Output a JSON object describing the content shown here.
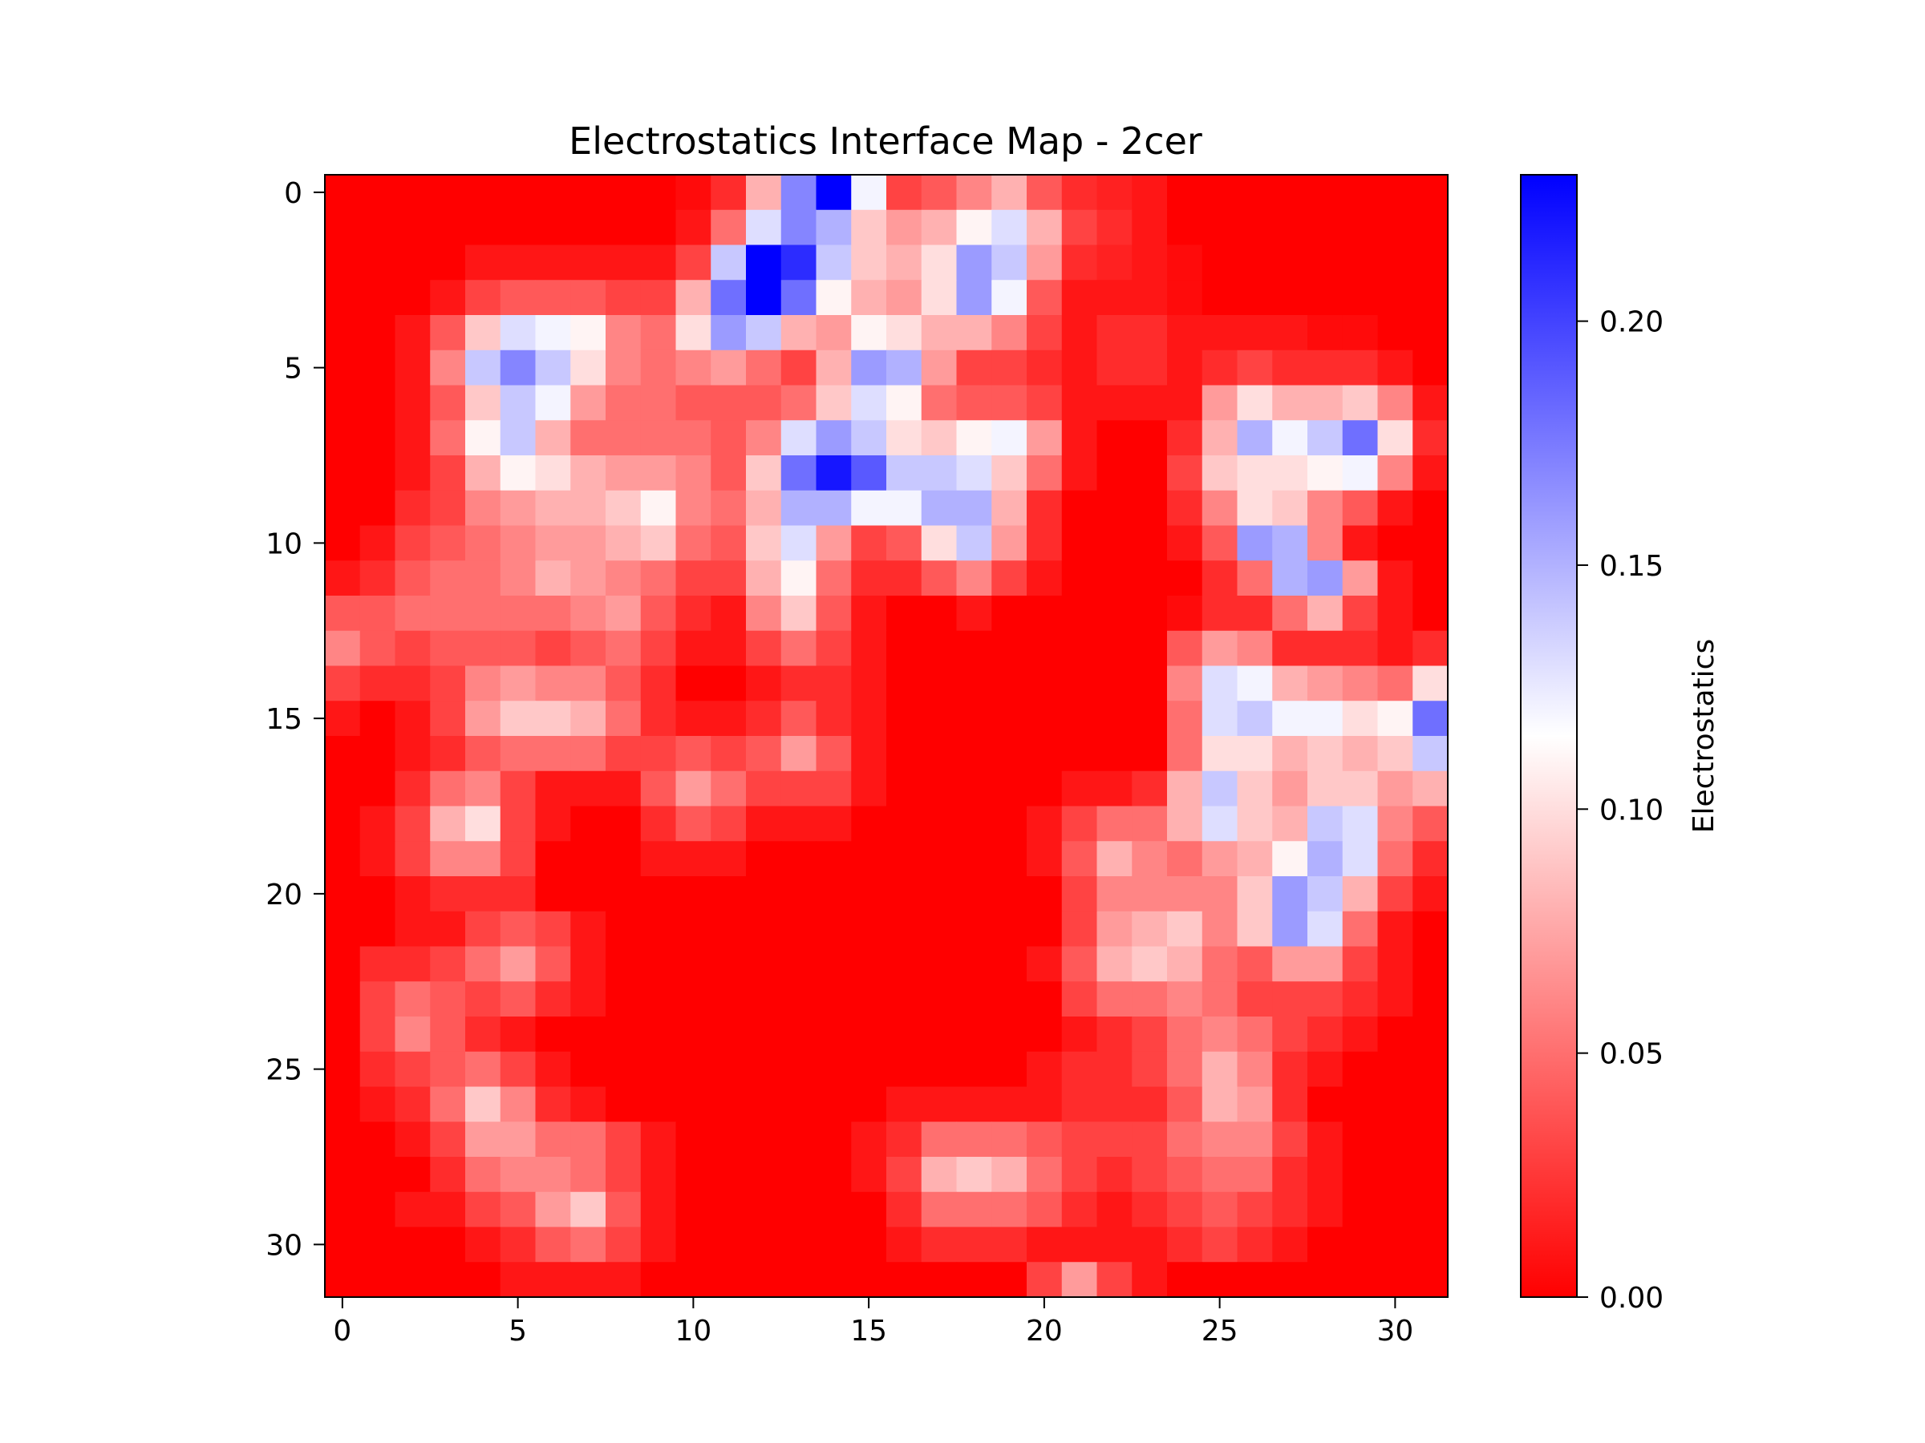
{
  "chart_data": {
    "type": "heatmap",
    "title": "Electrostatics Interface Map - 2cer",
    "xlabel": "",
    "ylabel": "",
    "colorbar_label": "Electrostatics",
    "colormap": "bwr_r",
    "colormap_stops": [
      "#ff0000",
      "#ffffff",
      "#0000ff"
    ],
    "vmin": 0.0,
    "vmax": 0.23,
    "x_ticks": [
      0,
      5,
      10,
      15,
      20,
      25,
      30
    ],
    "y_ticks": [
      0,
      5,
      10,
      15,
      20,
      25,
      30
    ],
    "colorbar_ticks": [
      0.0,
      0.05,
      0.1,
      0.15,
      0.2
    ],
    "colorbar_tick_labels": [
      "0.00",
      "0.05",
      "0.10",
      "0.15",
      "0.20"
    ],
    "rows": 32,
    "cols": 32,
    "values": [
      [
        0.0,
        0.0,
        0.0,
        0.0,
        0.0,
        0.0,
        0.0,
        0.0,
        0.0,
        0.0,
        0.005,
        0.02,
        0.08,
        0.17,
        0.23,
        0.12,
        0.03,
        0.04,
        0.06,
        0.08,
        0.04,
        0.02,
        0.015,
        0.01,
        0.0,
        0.0,
        0.0,
        0.0,
        0.0,
        0.0,
        0.0,
        0.0
      ],
      [
        0.0,
        0.0,
        0.0,
        0.0,
        0.0,
        0.0,
        0.0,
        0.0,
        0.0,
        0.0,
        0.01,
        0.05,
        0.13,
        0.17,
        0.15,
        0.09,
        0.07,
        0.08,
        0.11,
        0.13,
        0.08,
        0.03,
        0.02,
        0.01,
        0.0,
        0.0,
        0.0,
        0.0,
        0.0,
        0.0,
        0.0,
        0.0
      ],
      [
        0.0,
        0.0,
        0.0,
        0.0,
        0.01,
        0.01,
        0.01,
        0.01,
        0.01,
        0.01,
        0.03,
        0.14,
        0.23,
        0.21,
        0.14,
        0.09,
        0.08,
        0.1,
        0.16,
        0.14,
        0.07,
        0.02,
        0.015,
        0.01,
        0.005,
        0.0,
        0.0,
        0.0,
        0.0,
        0.0,
        0.0,
        0.0
      ],
      [
        0.0,
        0.0,
        0.0,
        0.01,
        0.03,
        0.04,
        0.04,
        0.04,
        0.03,
        0.03,
        0.08,
        0.18,
        0.23,
        0.18,
        0.11,
        0.08,
        0.07,
        0.1,
        0.16,
        0.12,
        0.04,
        0.01,
        0.01,
        0.01,
        0.005,
        0.0,
        0.0,
        0.0,
        0.0,
        0.0,
        0.0,
        0.0
      ],
      [
        0.0,
        0.0,
        0.01,
        0.04,
        0.09,
        0.13,
        0.12,
        0.11,
        0.06,
        0.05,
        0.1,
        0.16,
        0.14,
        0.08,
        0.07,
        0.11,
        0.1,
        0.08,
        0.08,
        0.06,
        0.03,
        0.01,
        0.02,
        0.02,
        0.01,
        0.01,
        0.01,
        0.01,
        0.005,
        0.005,
        0.0,
        0.0
      ],
      [
        0.0,
        0.0,
        0.01,
        0.06,
        0.14,
        0.17,
        0.14,
        0.1,
        0.06,
        0.05,
        0.06,
        0.07,
        0.05,
        0.03,
        0.08,
        0.16,
        0.15,
        0.07,
        0.03,
        0.03,
        0.02,
        0.01,
        0.02,
        0.02,
        0.01,
        0.02,
        0.03,
        0.02,
        0.02,
        0.02,
        0.01,
        0.0
      ],
      [
        0.0,
        0.0,
        0.01,
        0.04,
        0.09,
        0.14,
        0.12,
        0.07,
        0.05,
        0.05,
        0.04,
        0.04,
        0.04,
        0.05,
        0.09,
        0.13,
        0.11,
        0.05,
        0.04,
        0.04,
        0.03,
        0.01,
        0.01,
        0.01,
        0.01,
        0.07,
        0.1,
        0.08,
        0.08,
        0.09,
        0.06,
        0.01
      ],
      [
        0.0,
        0.0,
        0.01,
        0.05,
        0.11,
        0.14,
        0.08,
        0.05,
        0.05,
        0.05,
        0.05,
        0.04,
        0.06,
        0.13,
        0.16,
        0.14,
        0.1,
        0.09,
        0.11,
        0.12,
        0.07,
        0.01,
        0.0,
        0.0,
        0.02,
        0.08,
        0.15,
        0.12,
        0.14,
        0.18,
        0.1,
        0.02
      ],
      [
        0.0,
        0.0,
        0.01,
        0.03,
        0.08,
        0.11,
        0.1,
        0.08,
        0.07,
        0.07,
        0.06,
        0.04,
        0.09,
        0.18,
        0.22,
        0.19,
        0.14,
        0.14,
        0.13,
        0.09,
        0.05,
        0.01,
        0.0,
        0.0,
        0.03,
        0.09,
        0.1,
        0.1,
        0.11,
        0.12,
        0.06,
        0.01
      ],
      [
        0.0,
        0.0,
        0.02,
        0.03,
        0.06,
        0.07,
        0.08,
        0.08,
        0.09,
        0.11,
        0.06,
        0.05,
        0.08,
        0.15,
        0.15,
        0.12,
        0.12,
        0.15,
        0.15,
        0.08,
        0.02,
        0.0,
        0.0,
        0.0,
        0.02,
        0.06,
        0.1,
        0.09,
        0.06,
        0.04,
        0.01,
        0.0
      ],
      [
        0.0,
        0.01,
        0.03,
        0.04,
        0.05,
        0.06,
        0.07,
        0.07,
        0.08,
        0.09,
        0.05,
        0.04,
        0.09,
        0.13,
        0.07,
        0.03,
        0.04,
        0.1,
        0.14,
        0.07,
        0.02,
        0.0,
        0.0,
        0.0,
        0.01,
        0.04,
        0.16,
        0.15,
        0.06,
        0.01,
        0.0,
        0.0
      ],
      [
        0.01,
        0.02,
        0.04,
        0.05,
        0.05,
        0.06,
        0.08,
        0.07,
        0.06,
        0.05,
        0.03,
        0.03,
        0.08,
        0.11,
        0.05,
        0.02,
        0.02,
        0.04,
        0.06,
        0.03,
        0.01,
        0.0,
        0.0,
        0.0,
        0.0,
        0.02,
        0.05,
        0.15,
        0.16,
        0.07,
        0.01,
        0.0
      ],
      [
        0.04,
        0.04,
        0.05,
        0.05,
        0.05,
        0.05,
        0.05,
        0.06,
        0.07,
        0.04,
        0.02,
        0.01,
        0.06,
        0.09,
        0.04,
        0.01,
        0.0,
        0.0,
        0.01,
        0.0,
        0.0,
        0.0,
        0.0,
        0.0,
        0.005,
        0.02,
        0.02,
        0.05,
        0.08,
        0.03,
        0.01,
        0.0
      ],
      [
        0.06,
        0.04,
        0.03,
        0.04,
        0.04,
        0.04,
        0.03,
        0.04,
        0.05,
        0.03,
        0.01,
        0.01,
        0.03,
        0.05,
        0.03,
        0.01,
        0.0,
        0.0,
        0.0,
        0.0,
        0.0,
        0.0,
        0.0,
        0.0,
        0.04,
        0.07,
        0.06,
        0.02,
        0.02,
        0.02,
        0.01,
        0.02
      ],
      [
        0.03,
        0.02,
        0.02,
        0.03,
        0.06,
        0.07,
        0.06,
        0.06,
        0.04,
        0.02,
        0.0,
        0.0,
        0.01,
        0.02,
        0.02,
        0.01,
        0.0,
        0.0,
        0.0,
        0.0,
        0.0,
        0.0,
        0.0,
        0.0,
        0.06,
        0.13,
        0.12,
        0.08,
        0.07,
        0.06,
        0.05,
        0.1
      ],
      [
        0.01,
        0.0,
        0.01,
        0.03,
        0.07,
        0.09,
        0.09,
        0.08,
        0.05,
        0.02,
        0.01,
        0.01,
        0.02,
        0.04,
        0.02,
        0.01,
        0.0,
        0.0,
        0.0,
        0.0,
        0.0,
        0.0,
        0.0,
        0.0,
        0.05,
        0.13,
        0.14,
        0.12,
        0.12,
        0.1,
        0.11,
        0.18
      ],
      [
        0.0,
        0.0,
        0.01,
        0.02,
        0.04,
        0.05,
        0.05,
        0.05,
        0.03,
        0.03,
        0.04,
        0.03,
        0.04,
        0.07,
        0.04,
        0.01,
        0.0,
        0.0,
        0.0,
        0.0,
        0.0,
        0.0,
        0.0,
        0.0,
        0.05,
        0.1,
        0.1,
        0.08,
        0.09,
        0.08,
        0.09,
        0.14
      ],
      [
        0.0,
        0.0,
        0.02,
        0.05,
        0.06,
        0.03,
        0.01,
        0.01,
        0.01,
        0.04,
        0.07,
        0.05,
        0.03,
        0.03,
        0.03,
        0.01,
        0.0,
        0.0,
        0.0,
        0.0,
        0.0,
        0.01,
        0.01,
        0.02,
        0.08,
        0.14,
        0.09,
        0.07,
        0.09,
        0.09,
        0.07,
        0.08
      ],
      [
        0.0,
        0.01,
        0.03,
        0.08,
        0.1,
        0.03,
        0.01,
        0.0,
        0.0,
        0.02,
        0.04,
        0.03,
        0.01,
        0.01,
        0.01,
        0.0,
        0.0,
        0.0,
        0.0,
        0.0,
        0.01,
        0.03,
        0.05,
        0.05,
        0.08,
        0.13,
        0.09,
        0.08,
        0.14,
        0.13,
        0.06,
        0.04
      ],
      [
        0.0,
        0.01,
        0.03,
        0.06,
        0.06,
        0.03,
        0.0,
        0.0,
        0.0,
        0.01,
        0.01,
        0.01,
        0.0,
        0.0,
        0.0,
        0.0,
        0.0,
        0.0,
        0.0,
        0.0,
        0.01,
        0.04,
        0.08,
        0.06,
        0.05,
        0.07,
        0.08,
        0.11,
        0.15,
        0.13,
        0.05,
        0.02
      ],
      [
        0.0,
        0.0,
        0.01,
        0.02,
        0.02,
        0.02,
        0.0,
        0.0,
        0.0,
        0.0,
        0.0,
        0.0,
        0.0,
        0.0,
        0.0,
        0.0,
        0.0,
        0.0,
        0.0,
        0.0,
        0.0,
        0.03,
        0.06,
        0.06,
        0.06,
        0.06,
        0.09,
        0.16,
        0.14,
        0.08,
        0.03,
        0.01
      ],
      [
        0.0,
        0.0,
        0.01,
        0.01,
        0.03,
        0.04,
        0.03,
        0.01,
        0.0,
        0.0,
        0.0,
        0.0,
        0.0,
        0.0,
        0.0,
        0.0,
        0.0,
        0.0,
        0.0,
        0.0,
        0.0,
        0.03,
        0.07,
        0.08,
        0.09,
        0.06,
        0.09,
        0.16,
        0.13,
        0.05,
        0.01,
        0.0
      ],
      [
        0.0,
        0.02,
        0.02,
        0.03,
        0.05,
        0.07,
        0.04,
        0.01,
        0.0,
        0.0,
        0.0,
        0.0,
        0.0,
        0.0,
        0.0,
        0.0,
        0.0,
        0.0,
        0.0,
        0.0,
        0.01,
        0.04,
        0.08,
        0.09,
        0.08,
        0.05,
        0.04,
        0.07,
        0.07,
        0.03,
        0.01,
        0.0
      ],
      [
        0.0,
        0.03,
        0.05,
        0.04,
        0.03,
        0.04,
        0.02,
        0.01,
        0.0,
        0.0,
        0.0,
        0.0,
        0.0,
        0.0,
        0.0,
        0.0,
        0.0,
        0.0,
        0.0,
        0.0,
        0.0,
        0.03,
        0.05,
        0.05,
        0.06,
        0.05,
        0.03,
        0.03,
        0.03,
        0.02,
        0.01,
        0.0
      ],
      [
        0.0,
        0.03,
        0.06,
        0.04,
        0.02,
        0.01,
        0.0,
        0.0,
        0.0,
        0.0,
        0.0,
        0.0,
        0.0,
        0.0,
        0.0,
        0.0,
        0.0,
        0.0,
        0.0,
        0.0,
        0.0,
        0.01,
        0.02,
        0.03,
        0.05,
        0.06,
        0.05,
        0.03,
        0.02,
        0.01,
        0.0,
        0.0
      ],
      [
        0.0,
        0.02,
        0.03,
        0.04,
        0.05,
        0.03,
        0.01,
        0.0,
        0.0,
        0.0,
        0.0,
        0.0,
        0.0,
        0.0,
        0.0,
        0.0,
        0.0,
        0.0,
        0.0,
        0.0,
        0.01,
        0.02,
        0.02,
        0.03,
        0.05,
        0.08,
        0.06,
        0.02,
        0.01,
        0.0,
        0.0,
        0.0
      ],
      [
        0.0,
        0.01,
        0.02,
        0.05,
        0.09,
        0.06,
        0.02,
        0.01,
        0.0,
        0.0,
        0.0,
        0.0,
        0.0,
        0.0,
        0.0,
        0.0,
        0.01,
        0.01,
        0.01,
        0.01,
        0.01,
        0.02,
        0.02,
        0.02,
        0.04,
        0.08,
        0.07,
        0.02,
        0.0,
        0.0,
        0.0,
        0.0
      ],
      [
        0.0,
        0.0,
        0.01,
        0.03,
        0.07,
        0.07,
        0.05,
        0.05,
        0.03,
        0.01,
        0.0,
        0.0,
        0.0,
        0.0,
        0.0,
        0.01,
        0.02,
        0.05,
        0.05,
        0.05,
        0.04,
        0.03,
        0.03,
        0.03,
        0.05,
        0.06,
        0.06,
        0.03,
        0.01,
        0.0,
        0.0,
        0.0
      ],
      [
        0.0,
        0.0,
        0.0,
        0.02,
        0.05,
        0.06,
        0.06,
        0.05,
        0.03,
        0.01,
        0.0,
        0.0,
        0.0,
        0.0,
        0.0,
        0.01,
        0.03,
        0.08,
        0.09,
        0.08,
        0.05,
        0.03,
        0.02,
        0.03,
        0.04,
        0.05,
        0.05,
        0.02,
        0.01,
        0.0,
        0.0,
        0.0
      ],
      [
        0.0,
        0.0,
        0.01,
        0.01,
        0.03,
        0.04,
        0.07,
        0.09,
        0.04,
        0.01,
        0.0,
        0.0,
        0.0,
        0.0,
        0.0,
        0.0,
        0.02,
        0.05,
        0.05,
        0.05,
        0.04,
        0.02,
        0.01,
        0.02,
        0.03,
        0.04,
        0.03,
        0.02,
        0.01,
        0.0,
        0.0,
        0.0
      ],
      [
        0.0,
        0.0,
        0.0,
        0.0,
        0.01,
        0.02,
        0.04,
        0.05,
        0.03,
        0.01,
        0.0,
        0.0,
        0.0,
        0.0,
        0.0,
        0.0,
        0.01,
        0.02,
        0.02,
        0.02,
        0.01,
        0.01,
        0.01,
        0.01,
        0.02,
        0.03,
        0.02,
        0.01,
        0.0,
        0.0,
        0.0,
        0.0
      ],
      [
        0.0,
        0.0,
        0.0,
        0.0,
        0.0,
        0.01,
        0.01,
        0.01,
        0.01,
        0.0,
        0.0,
        0.0,
        0.0,
        0.0,
        0.0,
        0.0,
        0.0,
        0.0,
        0.0,
        0.0,
        0.03,
        0.07,
        0.03,
        0.01,
        0.0,
        0.0,
        0.0,
        0.0,
        0.0,
        0.0,
        0.0,
        0.0
      ]
    ]
  }
}
